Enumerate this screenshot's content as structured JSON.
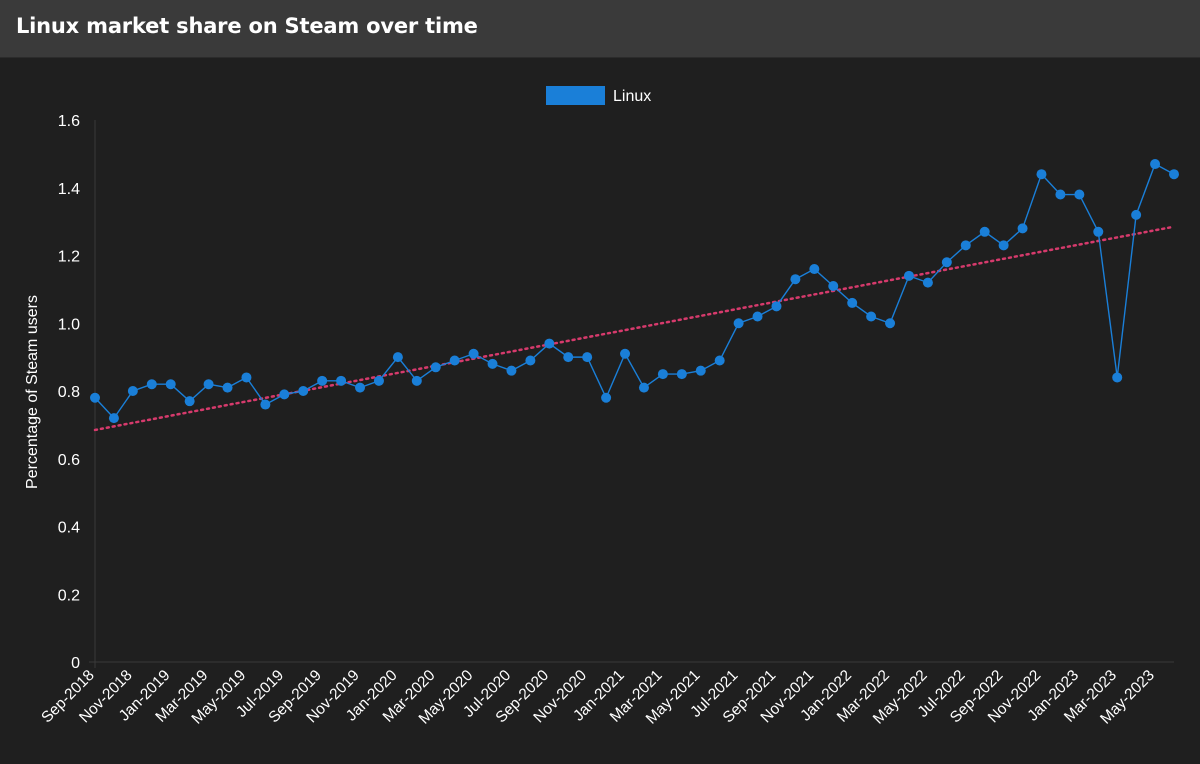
{
  "header": {
    "title": "Linux market share on Steam over time"
  },
  "colors": {
    "series": "#1a7fd8",
    "trend": "#d63a6c",
    "text": "#ffffff",
    "axis": "#3a3a3a",
    "background": "#1f1f1f"
  },
  "chart_data": {
    "type": "line",
    "title": "",
    "xlabel": "",
    "ylabel": "Percentage of Steam users",
    "ylim": [
      0,
      1.6
    ],
    "yticks": [
      "0",
      "0.2",
      "0.4",
      "0.6",
      "0.8",
      "1.0",
      "1.2",
      "1.4",
      "1.6"
    ],
    "grid": false,
    "legend": "top-center",
    "x": [
      "Sep-2018",
      "Oct-2018",
      "Nov-2018",
      "Dec-2018",
      "Jan-2019",
      "Feb-2019",
      "Mar-2019",
      "Apr-2019",
      "May-2019",
      "Jun-2019",
      "Jul-2019",
      "Aug-2019",
      "Sep-2019",
      "Oct-2019",
      "Nov-2019",
      "Dec-2019",
      "Jan-2020",
      "Feb-2020",
      "Mar-2020",
      "Apr-2020",
      "May-2020",
      "Jun-2020",
      "Jul-2020",
      "Aug-2020",
      "Sep-2020",
      "Oct-2020",
      "Nov-2020",
      "Dec-2020",
      "Jan-2021",
      "Feb-2021",
      "Mar-2021",
      "Apr-2021",
      "May-2021",
      "Jun-2021",
      "Jul-2021",
      "Aug-2021",
      "Sep-2021",
      "Oct-2021",
      "Nov-2021",
      "Dec-2021",
      "Jan-2022",
      "Feb-2022",
      "Mar-2022",
      "Apr-2022",
      "May-2022",
      "Jun-2022",
      "Jul-2022",
      "Aug-2022",
      "Sep-2022",
      "Oct-2022",
      "Nov-2022",
      "Dec-2022",
      "Jan-2023",
      "Feb-2023",
      "Mar-2023",
      "Apr-2023",
      "May-2023",
      "Jun-2023"
    ],
    "x_tick_labels": [
      "Sep-2018",
      "Nov-2018",
      "Jan-2019",
      "Mar-2019",
      "May-2019",
      "Jul-2019",
      "Sep-2019",
      "Nov-2019",
      "Jan-2020",
      "Mar-2020",
      "May-2020",
      "Jul-2020",
      "Sep-2020",
      "Nov-2020",
      "Jan-2021",
      "Mar-2021",
      "May-2021",
      "Jul-2021",
      "Sep-2021",
      "Nov-2021",
      "Jan-2022",
      "Mar-2022",
      "May-2022",
      "Jul-2022",
      "Sep-2022",
      "Nov-2022",
      "Jan-2023",
      "Mar-2023",
      "May-2023"
    ],
    "series": [
      {
        "name": "Linux",
        "values": [
          0.78,
          0.72,
          0.8,
          0.82,
          0.82,
          0.77,
          0.82,
          0.81,
          0.84,
          0.76,
          0.79,
          0.8,
          0.83,
          0.83,
          0.81,
          0.83,
          0.9,
          0.83,
          0.87,
          0.89,
          0.91,
          0.88,
          0.86,
          0.89,
          0.94,
          0.9,
          0.9,
          0.78,
          0.91,
          0.81,
          0.85,
          0.85,
          0.86,
          0.89,
          1.0,
          1.02,
          1.05,
          1.13,
          1.16,
          1.11,
          1.06,
          1.02,
          1.0,
          1.14,
          1.12,
          1.18,
          1.23,
          1.27,
          1.23,
          1.28,
          1.44,
          1.38,
          1.38,
          1.27,
          0.84,
          1.32,
          1.47,
          1.44
        ]
      }
    ],
    "trendline": {
      "start": 0.685,
      "end": 1.285
    }
  }
}
